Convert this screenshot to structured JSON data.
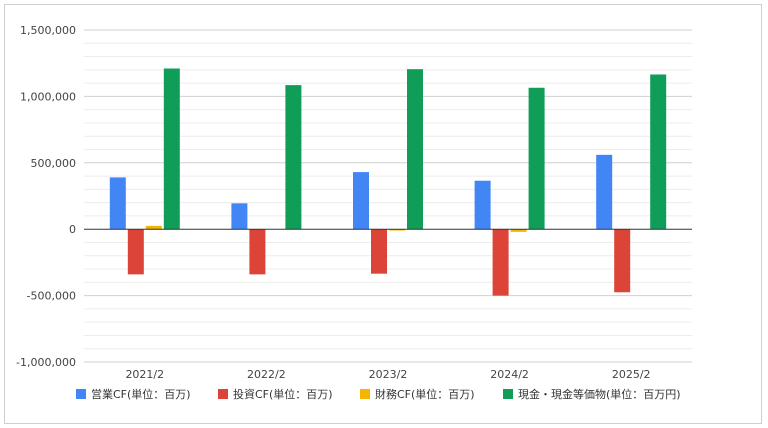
{
  "chart_data": {
    "type": "bar",
    "categories": [
      "2021/2",
      "2022/2",
      "2023/2",
      "2024/2",
      "2025/2"
    ],
    "series": [
      {
        "name": "営業CF(単位：百万)",
        "color": "#4285f4",
        "values": [
          390000,
          195000,
          430000,
          365000,
          560000
        ]
      },
      {
        "name": "投資CF(単位：百万)",
        "color": "#db4437",
        "values": [
          -340000,
          -340000,
          -335000,
          -500000,
          -475000
        ]
      },
      {
        "name": "財務CF(単位：百万)",
        "color": "#f4b400",
        "values": [
          25000,
          0,
          -10000,
          -20000,
          0
        ]
      },
      {
        "name": "現金・現金等価物(単位：百万円)",
        "color": "#0f9d58",
        "values": [
          1210000,
          1085000,
          1205000,
          1065000,
          1165000
        ]
      }
    ],
    "yticks": [
      "1,500,000",
      "1,000,000",
      "500,000",
      "0",
      "-500,000",
      "-1,000,000"
    ],
    "ylim": [
      -1000000,
      1500000
    ],
    "grid": true,
    "legend_position": "bottom"
  }
}
